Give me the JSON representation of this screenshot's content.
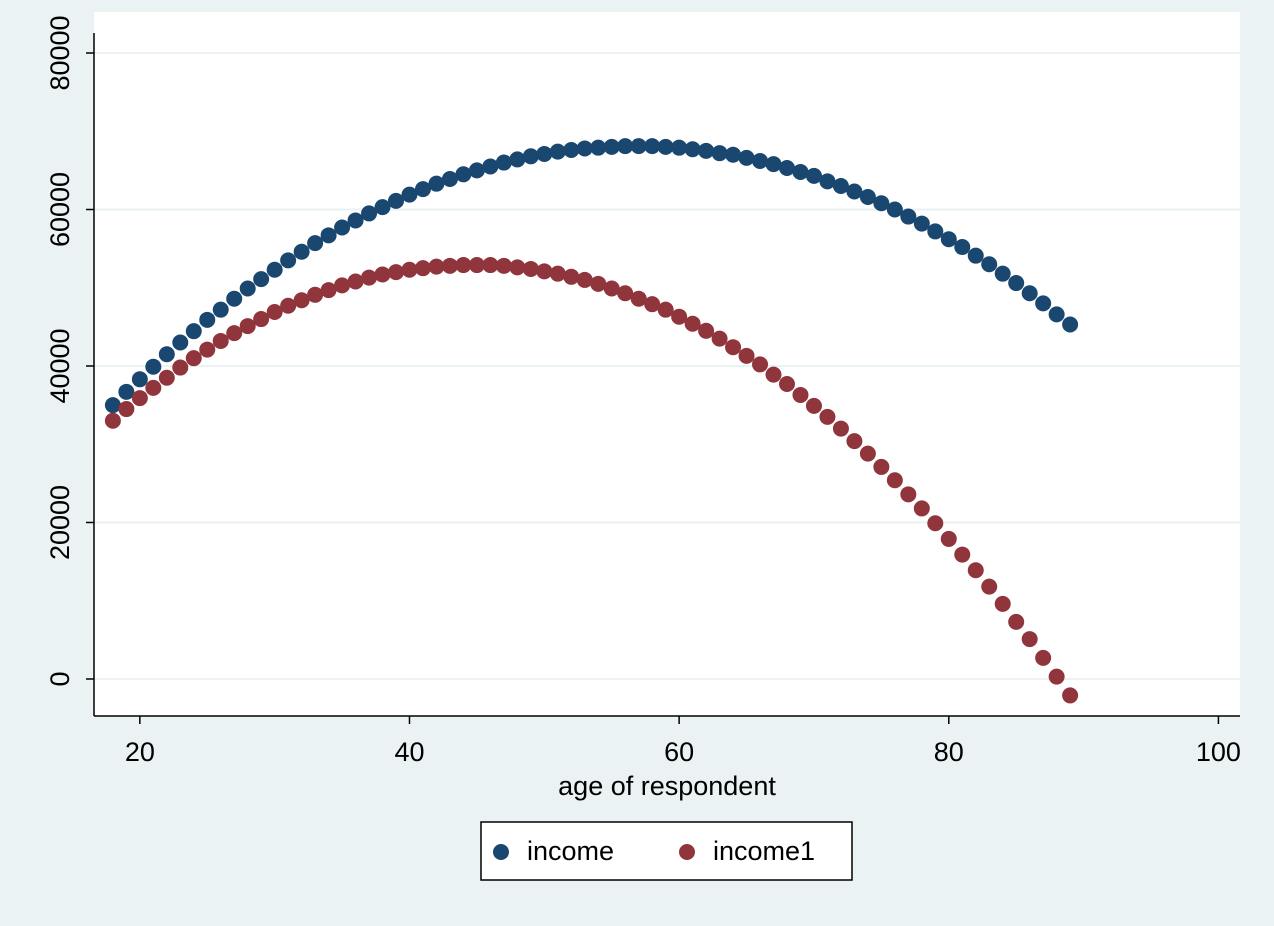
{
  "chart_data": {
    "type": "scatter",
    "x_label": "age of respondent",
    "x": [
      18,
      19,
      20,
      21,
      22,
      23,
      24,
      25,
      26,
      27,
      28,
      29,
      30,
      31,
      32,
      33,
      34,
      35,
      36,
      37,
      38,
      39,
      40,
      41,
      42,
      43,
      44,
      45,
      46,
      47,
      48,
      49,
      50,
      51,
      52,
      53,
      54,
      55,
      56,
      57,
      58,
      59,
      60,
      61,
      62,
      63,
      64,
      65,
      66,
      67,
      68,
      69,
      70,
      71,
      72,
      73,
      74,
      75,
      76,
      77,
      78,
      79,
      80,
      81,
      82,
      83,
      84,
      85,
      86,
      87,
      88,
      89
    ],
    "series": [
      {
        "name": "income",
        "color": "#1a476f",
        "values": [
          35000,
          36700,
          38300,
          39900,
          41500,
          43000,
          44450,
          45900,
          47200,
          48600,
          49900,
          51100,
          52300,
          53500,
          54600,
          55700,
          56700,
          57700,
          58600,
          59500,
          60300,
          61100,
          61900,
          62600,
          63300,
          63900,
          64500,
          65000,
          65500,
          66000,
          66400,
          66800,
          67100,
          67400,
          67600,
          67800,
          67900,
          68000,
          68100,
          68100,
          68100,
          68000,
          67900,
          67700,
          67500,
          67200,
          67000,
          66600,
          66200,
          65800,
          65300,
          64800,
          64300,
          63600,
          63000,
          62300,
          61600,
          60800,
          60000,
          59100,
          58200,
          57200,
          56200,
          55200,
          54100,
          53000,
          51800,
          50600,
          49300,
          48000,
          46600,
          45300
        ]
      },
      {
        "name": "income1",
        "color": "#90353b",
        "values": [
          33000,
          34500,
          35900,
          37200,
          38500,
          39800,
          41000,
          42100,
          43200,
          44200,
          45100,
          46000,
          46900,
          47700,
          48400,
          49100,
          49700,
          50300,
          50800,
          51300,
          51700,
          52000,
          52300,
          52500,
          52700,
          52800,
          52900,
          52900,
          52900,
          52800,
          52600,
          52400,
          52100,
          51800,
          51400,
          51000,
          50500,
          49900,
          49300,
          48600,
          47900,
          47200,
          46300,
          45400,
          44500,
          43500,
          42400,
          41300,
          40200,
          38900,
          37700,
          36300,
          34900,
          33500,
          32000,
          30400,
          28800,
          27100,
          25400,
          23600,
          21800,
          19900,
          17900,
          15900,
          13900,
          11800,
          9600,
          7300,
          5100,
          2700,
          300,
          -2100
        ]
      }
    ],
    "xlim": [
      16.6,
      101.6
    ],
    "xticks": [
      20,
      40,
      60,
      80,
      100
    ],
    "ylim": [
      -4730,
      85240
    ],
    "yticks": [
      0,
      20000,
      40000,
      60000,
      80000
    ],
    "grid": true,
    "legend_position": "bottom"
  }
}
